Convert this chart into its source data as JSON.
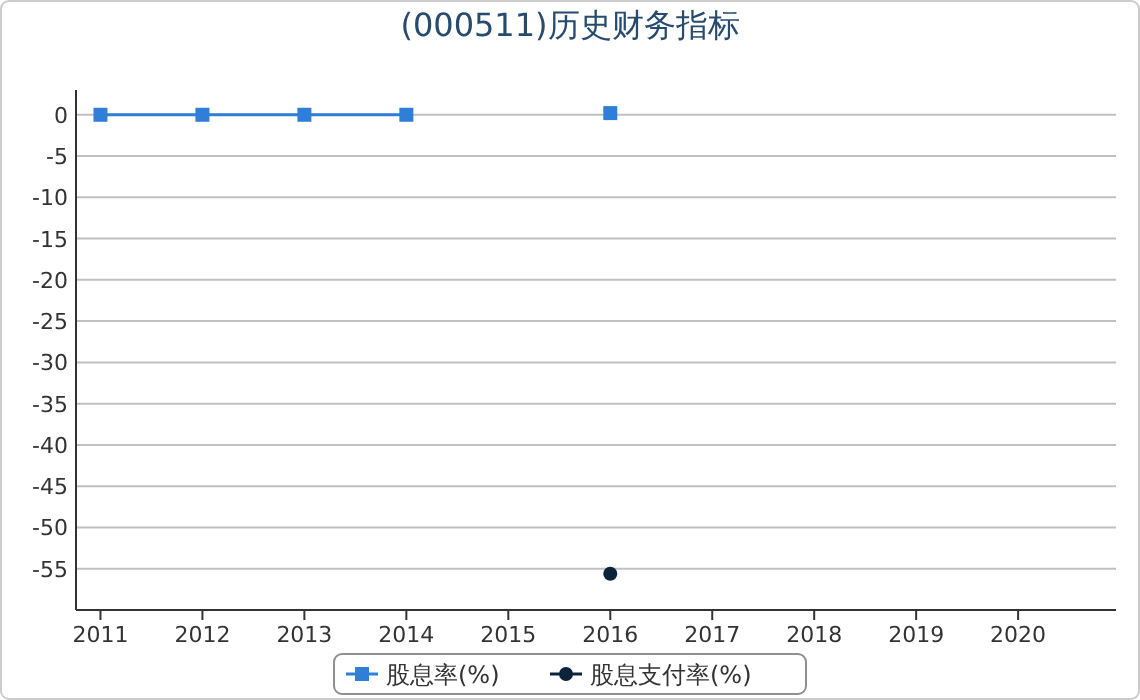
{
  "chart_data": {
    "type": "line",
    "title": "(000511)历史财务指标",
    "categories": [
      "2011",
      "2012",
      "2013",
      "2014",
      "2015",
      "2016",
      "2017",
      "2018",
      "2019",
      "2020"
    ],
    "series": [
      {
        "name": "股息率(%)",
        "color": "#2f7ed8",
        "marker": "square",
        "values": [
          0,
          0,
          0,
          0,
          null,
          0.2,
          null,
          null,
          null,
          null
        ]
      },
      {
        "name": "股息支付率(%)",
        "color": "#0d233a",
        "marker": "circle",
        "values": [
          null,
          null,
          null,
          null,
          null,
          -55.6,
          null,
          null,
          null,
          null
        ]
      }
    ],
    "ylim": [
      -60,
      3
    ],
    "yticks": [
      0,
      -5,
      -10,
      -15,
      -20,
      -25,
      -30,
      -35,
      -40,
      -45,
      -50,
      -55
    ],
    "grid": "y",
    "legend": "bottom"
  }
}
